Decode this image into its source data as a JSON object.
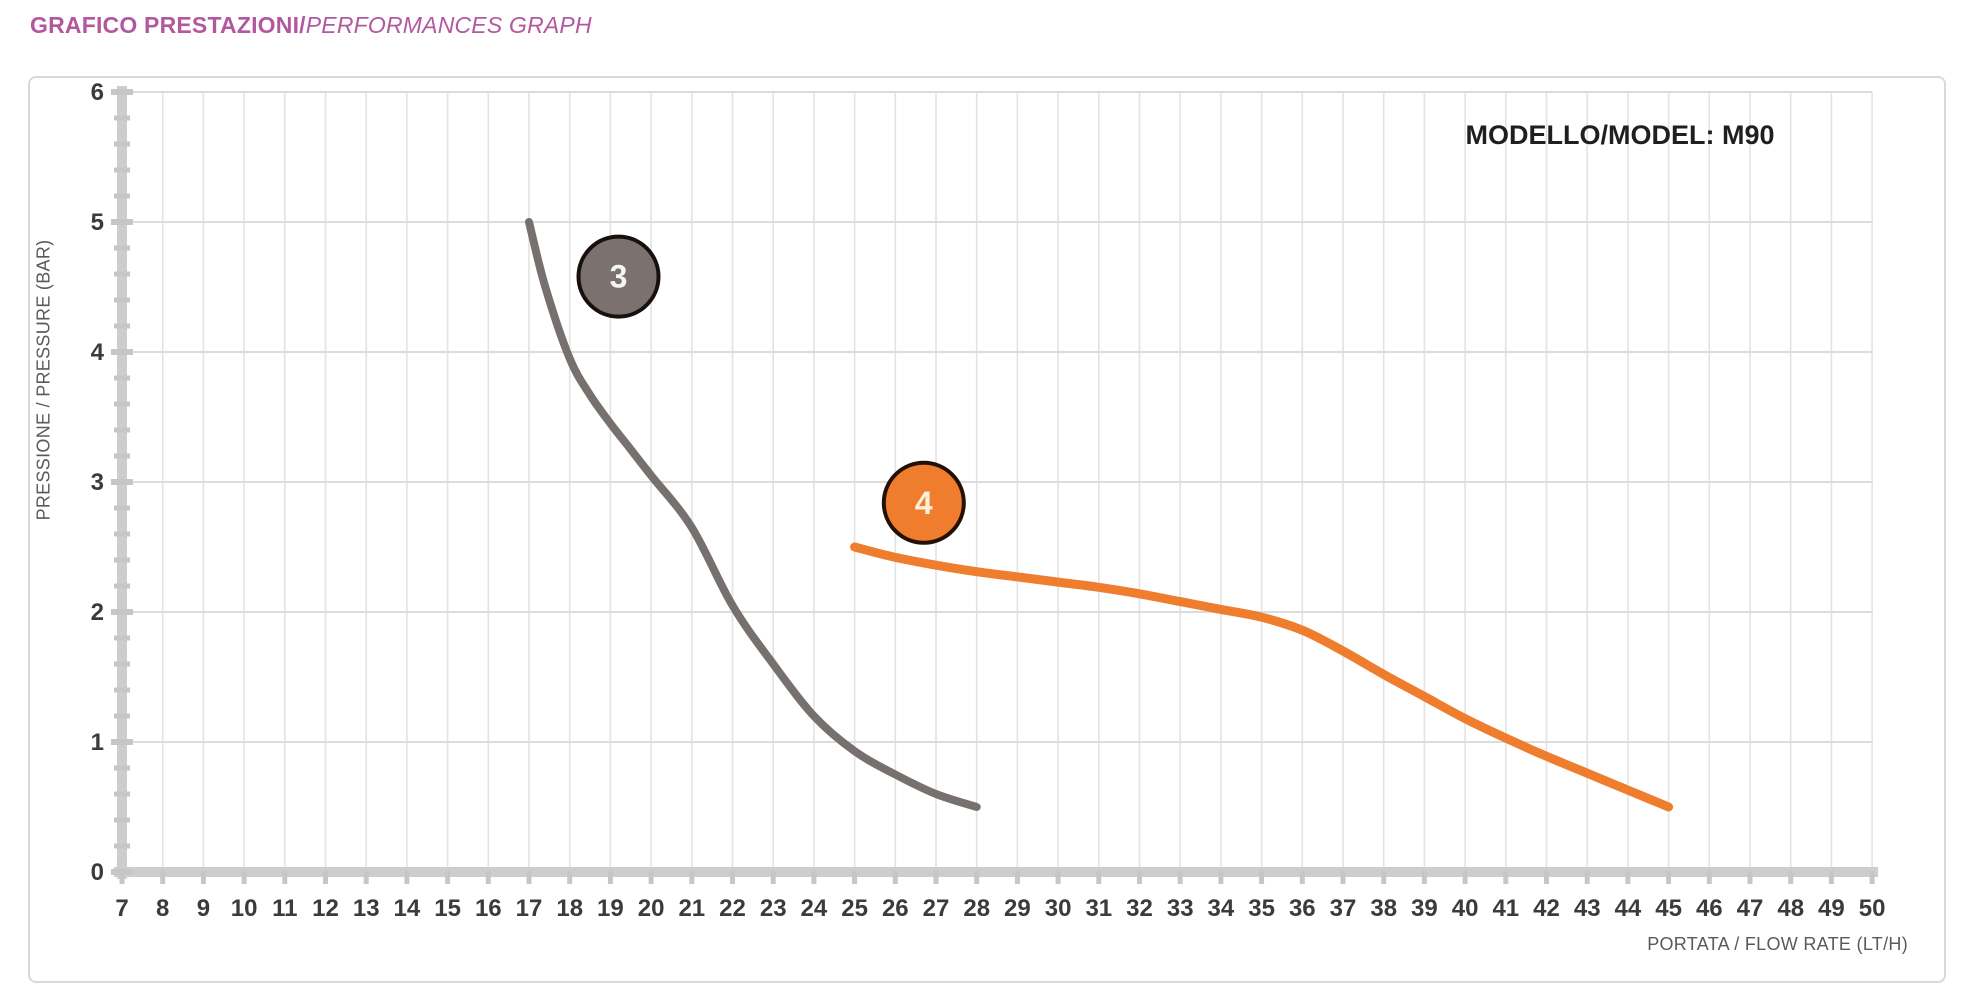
{
  "title": {
    "primary": "GRAFICO PRESTAZIONI/",
    "secondary": "PERFORMANCES GRAPH",
    "color": "#b3589f"
  },
  "model_label": "MODELLO/MODEL: M90",
  "chart_data": {
    "type": "line",
    "title": "",
    "xlabel": "PORTATA / FLOW RATE (LT/H)",
    "ylabel": "PRESSIONE / PRESSURE (BAR)",
    "xlim": [
      7,
      50
    ],
    "ylim": [
      0,
      6
    ],
    "x_ticks": [
      7,
      8,
      9,
      10,
      11,
      12,
      13,
      14,
      15,
      16,
      17,
      18,
      19,
      20,
      21,
      22,
      23,
      24,
      25,
      26,
      27,
      28,
      29,
      30,
      31,
      32,
      33,
      34,
      35,
      36,
      37,
      38,
      39,
      40,
      41,
      42,
      43,
      44,
      45,
      46,
      47,
      48,
      49,
      50
    ],
    "y_ticks": [
      0,
      1,
      2,
      3,
      4,
      5,
      6
    ],
    "y_minor_tick_step": 0.2,
    "grid": true,
    "legend_position": "none",
    "styles": {
      "grid_vertical_color": "#e3e3e3",
      "grid_horizontal_color": "#dcdcdc",
      "axis_color": "#cdcdcd",
      "tick_color": "#c6c6c6",
      "tick_label_color": "#3b3b3b"
    },
    "series": [
      {
        "name": "3",
        "color": "#76716f",
        "line_width": 8,
        "points": [
          [
            17,
            5.0
          ],
          [
            17.4,
            4.5
          ],
          [
            18,
            3.95
          ],
          [
            18.5,
            3.67
          ],
          [
            19,
            3.45
          ],
          [
            19.5,
            3.25
          ],
          [
            20,
            3.05
          ],
          [
            21,
            2.65
          ],
          [
            22,
            2.05
          ],
          [
            23,
            1.6
          ],
          [
            24,
            1.2
          ],
          [
            25,
            0.93
          ],
          [
            26,
            0.75
          ],
          [
            27,
            0.6
          ],
          [
            28,
            0.5
          ]
        ],
        "marker": {
          "label": "3",
          "at": [
            19.2,
            4.58
          ],
          "fill": "#7b7270",
          "text_color": "#f7f5f3",
          "border_color": "#17100c"
        }
      },
      {
        "name": "4",
        "color": "#ee7d2e",
        "line_width": 9,
        "points": [
          [
            25,
            2.5
          ],
          [
            26,
            2.42
          ],
          [
            27,
            2.36
          ],
          [
            28,
            2.31
          ],
          [
            29,
            2.27
          ],
          [
            30,
            2.23
          ],
          [
            31,
            2.19
          ],
          [
            32,
            2.14
          ],
          [
            33,
            2.08
          ],
          [
            34,
            2.02
          ],
          [
            35,
            1.96
          ],
          [
            36,
            1.86
          ],
          [
            37,
            1.7
          ],
          [
            38,
            1.52
          ],
          [
            39,
            1.35
          ],
          [
            40,
            1.18
          ],
          [
            41,
            1.03
          ],
          [
            42,
            0.89
          ],
          [
            43,
            0.76
          ],
          [
            44,
            0.63
          ],
          [
            45,
            0.5
          ]
        ],
        "marker": {
          "label": "4",
          "at": [
            26.7,
            2.84
          ],
          "fill": "#ef7d2d",
          "text_color": "#fcf0da",
          "border_color": "#241105"
        }
      }
    ]
  }
}
